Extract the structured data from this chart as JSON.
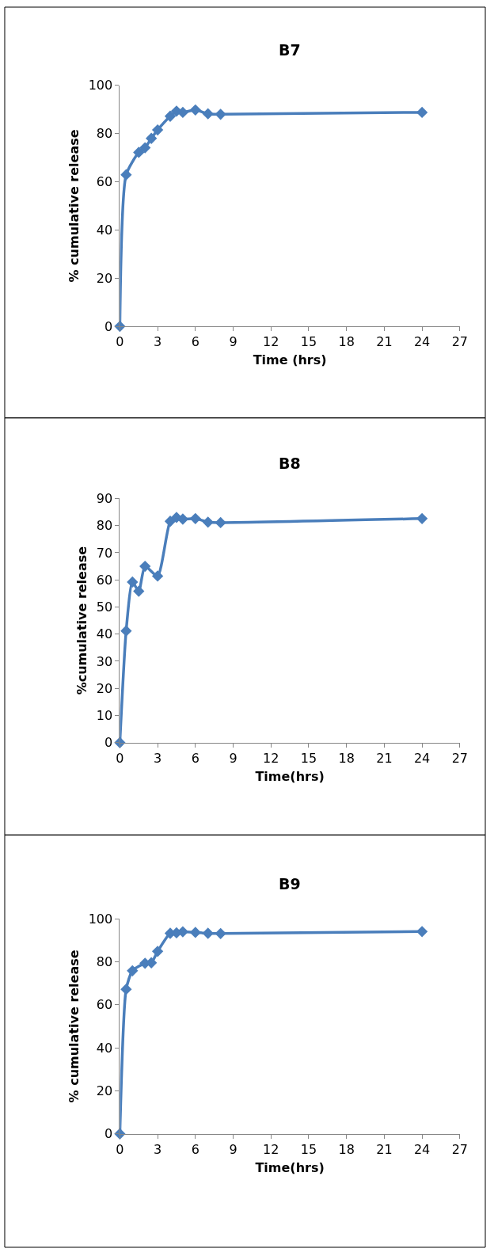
{
  "chart_data": [
    {
      "type": "line",
      "title": "B7",
      "xlabel": "Time (hrs)",
      "ylabel": "% cumulative release",
      "marker": "diamond",
      "line_style": "solid",
      "grid": false,
      "x": [
        0,
        0.5,
        1.5,
        2,
        2.5,
        3,
        4,
        4.5,
        5,
        6,
        7,
        8,
        24
      ],
      "series": [
        {
          "color": "#4a7ebb",
          "values": [
            0,
            62.9,
            72.2,
            74.1,
            78,
            81.5,
            87.2,
            89.3,
            88.8,
            89.8,
            88.2,
            88,
            88.8
          ]
        }
      ],
      "xlim": [
        0,
        27
      ],
      "xticks": [
        0,
        3,
        6,
        9,
        12,
        15,
        18,
        21,
        24,
        27
      ],
      "ylim": [
        0,
        100
      ],
      "yticks": [
        0,
        20,
        40,
        60,
        80,
        100
      ]
    },
    {
      "type": "line",
      "title": "B8",
      "xlabel": "Time(hrs)",
      "ylabel": "%cumulative release",
      "marker": "diamond",
      "line_style": "solid",
      "grid": false,
      "x": [
        0,
        0.5,
        1,
        1.5,
        2,
        3,
        4,
        4.5,
        5,
        6,
        7,
        8,
        24
      ],
      "series": [
        {
          "color": "#4a7ebb",
          "values": [
            0,
            41.2,
            59.2,
            55.8,
            65,
            61.4,
            81.6,
            83,
            82.4,
            82.6,
            81.3,
            81.1,
            82.6
          ]
        }
      ],
      "xlim": [
        0,
        27
      ],
      "xticks": [
        0,
        3,
        6,
        9,
        12,
        15,
        18,
        21,
        24,
        27
      ],
      "ylim": [
        0,
        90
      ],
      "yticks": [
        0,
        10,
        20,
        30,
        40,
        50,
        60,
        70,
        80,
        90
      ]
    },
    {
      "type": "line",
      "title": "B9",
      "xlabel": "Time(hrs)",
      "ylabel": "% cumulative release",
      "marker": "diamond",
      "line_style": "solid",
      "grid": false,
      "x": [
        0,
        0.5,
        1,
        2,
        2.5,
        3,
        4,
        4.5,
        5,
        6,
        7,
        8,
        24
      ],
      "series": [
        {
          "color": "#4a7ebb",
          "values": [
            0,
            67.2,
            75.8,
            79.3,
            79.5,
            84.8,
            93.2,
            93.4,
            93.9,
            93.6,
            93.2,
            93.1,
            94
          ]
        }
      ],
      "xlim": [
        0,
        27
      ],
      "xticks": [
        0,
        3,
        6,
        9,
        12,
        15,
        18,
        21,
        24,
        27
      ],
      "ylim": [
        0,
        100
      ],
      "yticks": [
        0,
        20,
        40,
        60,
        80,
        100
      ]
    }
  ]
}
